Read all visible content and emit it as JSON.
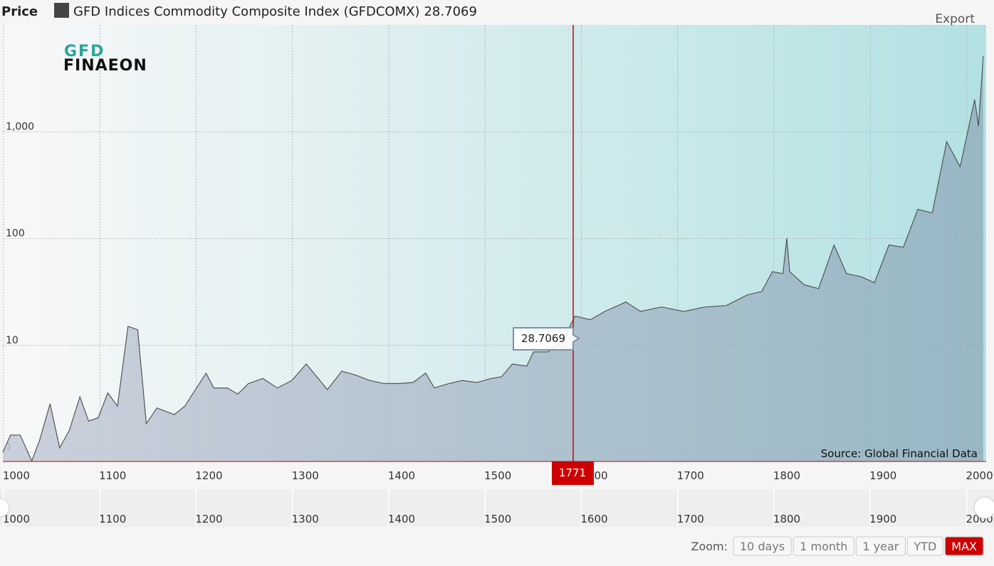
{
  "chart_data": {
    "type": "area",
    "y_axis_title": "Price",
    "series": [
      {
        "name": "GFD Indices Commodity Composite Index (GFDCOMX)",
        "color": "#555555",
        "x": [
          986,
          994,
          1004,
          1016,
          1024,
          1035,
          1045,
          1055,
          1066,
          1075,
          1085,
          1095,
          1105,
          1116,
          1126,
          1135,
          1146,
          1164,
          1175,
          1186,
          1197,
          1205,
          1219,
          1230,
          1241,
          1256,
          1271,
          1286,
          1301,
          1312,
          1323,
          1338,
          1353,
          1367,
          1382,
          1397,
          1412,
          1425,
          1434,
          1449,
          1463,
          1478,
          1493,
          1504,
          1515,
          1530,
          1537,
          1552,
          1567,
          1580,
          1596,
          1611,
          1633,
          1648,
          1670,
          1693,
          1715,
          1737,
          1759,
          1774,
          1785,
          1796,
          1800,
          1803,
          1818,
          1833,
          1849,
          1862,
          1877,
          1891,
          1906,
          1921,
          1936,
          1951,
          1966,
          1980,
          1995,
          1999,
          2004
        ],
        "values": [
          1.0,
          1.45,
          1.45,
          0.83,
          1.28,
          2.84,
          1.1,
          1.6,
          3.3,
          1.96,
          2.1,
          3.6,
          2.7,
          15.1,
          14.0,
          1.85,
          2.6,
          2.25,
          2.7,
          3.86,
          5.5,
          4.0,
          4.0,
          3.5,
          4.4,
          4.9,
          4.0,
          4.7,
          6.7,
          5.1,
          3.86,
          5.75,
          5.25,
          4.7,
          4.4,
          4.4,
          4.5,
          5.5,
          4.0,
          4.4,
          4.7,
          4.5,
          4.9,
          5.1,
          6.7,
          6.4,
          8.7,
          8.7,
          11,
          18.8,
          17.4,
          20.8,
          25.5,
          20.8,
          22.9,
          20.8,
          22.9,
          23.6,
          29.7,
          32,
          49,
          47,
          101,
          49,
          37,
          34,
          87,
          47,
          44,
          38.6,
          87,
          83,
          188,
          174,
          805,
          470,
          2000,
          1130,
          5100
        ]
      }
    ],
    "log_scale": true,
    "grid": true,
    "xlim": [
      986,
      2007
    ],
    "ylim": [
      0.82,
      10000
    ],
    "xticks": [
      1000,
      1100,
      1200,
      1300,
      1400,
      1500,
      1600,
      1700,
      1800,
      1900,
      2000
    ],
    "yticks": [
      1,
      10,
      100,
      {
        "value": 1000,
        "label": "1,000"
      }
    ],
    "crosshair": {
      "x": 1771,
      "value": 28.7069
    },
    "annotations": {
      "source": "Source: Global Financial Data"
    },
    "logo": [
      "GFD",
      "FINAEON"
    ],
    "export": "Export",
    "zoom": {
      "label": "Zoom:",
      "buttons": [
        "10 days",
        "1 month",
        "1 year",
        "YTD",
        "MAX"
      ]
    }
  }
}
